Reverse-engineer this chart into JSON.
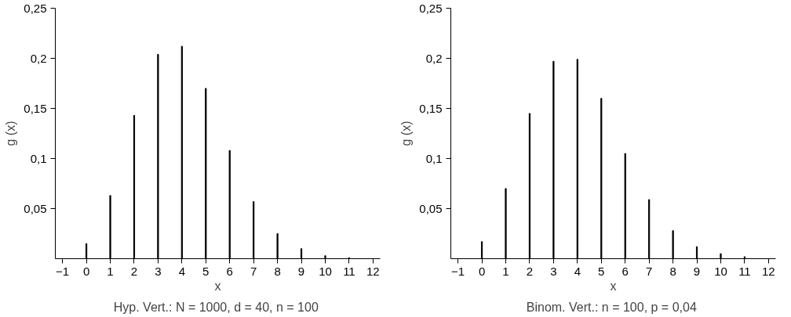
{
  "chart_data": [
    {
      "type": "bar",
      "xlabel": "x",
      "ylabel": "g (x)",
      "annotations": [
        "Hyp. Vert.:  N = 1000, d = 40, n = 100"
      ],
      "x": [
        0,
        1,
        2,
        3,
        4,
        5,
        6,
        7,
        8,
        9,
        10,
        11
      ],
      "series": [
        {
          "color": "#000000",
          "values": [
            0.015,
            0.063,
            0.143,
            0.204,
            0.212,
            0.17,
            0.108,
            0.057,
            0.025,
            0.01,
            0.003,
            0.001
          ]
        }
      ],
      "xlim": [
        -1.3,
        12.3
      ],
      "ylim": [
        0,
        0.25
      ],
      "xticks": [
        {
          "value": -1,
          "label": "−1"
        },
        0,
        1,
        2,
        3,
        4,
        5,
        6,
        7,
        8,
        9,
        10,
        11,
        12
      ],
      "yticks": [
        {
          "value": 0.05,
          "label": "0,05"
        },
        {
          "value": 0.1,
          "label": "0,1"
        },
        {
          "value": 0.15,
          "label": "0,15"
        },
        {
          "value": 0.2,
          "label": "0,2"
        },
        {
          "value": 0.25,
          "label": "0,25"
        }
      ],
      "grid": false
    },
    {
      "type": "bar",
      "xlabel": "x",
      "ylabel": "g (x)",
      "annotations": [
        "Binom. Vert.:  n = 100, p = 0,04"
      ],
      "x": [
        0,
        1,
        2,
        3,
        4,
        5,
        6,
        7,
        8,
        9,
        10,
        11
      ],
      "series": [
        {
          "color": "#000000",
          "values": [
            0.017,
            0.07,
            0.145,
            0.197,
            0.199,
            0.16,
            0.105,
            0.059,
            0.028,
            0.012,
            0.005,
            0.002
          ]
        }
      ],
      "xlim": [
        -1.3,
        12.3
      ],
      "ylim": [
        0,
        0.25
      ],
      "xticks": [
        {
          "value": -1,
          "label": "−1"
        },
        0,
        1,
        2,
        3,
        4,
        5,
        6,
        7,
        8,
        9,
        10,
        11,
        12
      ],
      "yticks": [
        {
          "value": 0.05,
          "label": "0,05"
        },
        {
          "value": 0.1,
          "label": "0,1"
        },
        {
          "value": 0.15,
          "label": "0,15"
        },
        {
          "value": 0.2,
          "label": "0,2"
        },
        {
          "value": 0.25,
          "label": "0,25"
        }
      ],
      "grid": false
    }
  ]
}
